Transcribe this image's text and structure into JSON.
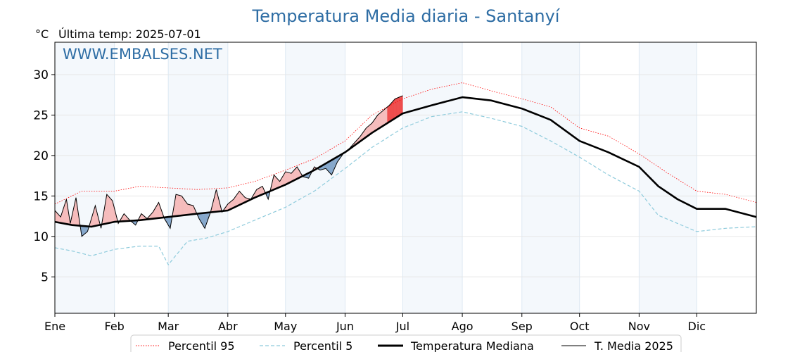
{
  "chart_data": {
    "type": "line",
    "title": "Temperatura Media diaria - Santanyí",
    "unit_label": "°C",
    "last_update_label": "Última temp: 2025-07-01",
    "watermark": "WWW.EMBALSES.NET",
    "ylim": [
      0.5,
      34
    ],
    "yticks": [
      5,
      10,
      15,
      20,
      25,
      30
    ],
    "xlim_days": [
      1,
      366
    ],
    "months": [
      {
        "label": "Ene",
        "start_day": 1
      },
      {
        "label": "Feb",
        "start_day": 32
      },
      {
        "label": "Mar",
        "start_day": 60
      },
      {
        "label": "Abr",
        "start_day": 91
      },
      {
        "label": "May",
        "start_day": 121
      },
      {
        "label": "Jun",
        "start_day": 152
      },
      {
        "label": "Jul",
        "start_day": 182
      },
      {
        "label": "Ago",
        "start_day": 213
      },
      {
        "label": "Sep",
        "start_day": 244
      },
      {
        "label": "Oct",
        "start_day": 274
      },
      {
        "label": "Nov",
        "start_day": 305
      },
      {
        "label": "Dic",
        "start_day": 335
      }
    ],
    "grid": true,
    "legend_position": "bottom-center",
    "series": [
      {
        "name": "Percentil 95",
        "color": "#ff0000",
        "style": "dotted",
        "points": [
          [
            1,
            14.0
          ],
          [
            15,
            15.6
          ],
          [
            32,
            15.6
          ],
          [
            45,
            16.2
          ],
          [
            60,
            16.0
          ],
          [
            75,
            15.8
          ],
          [
            91,
            16.0
          ],
          [
            105,
            16.8
          ],
          [
            121,
            18.2
          ],
          [
            136,
            19.6
          ],
          [
            152,
            21.8
          ],
          [
            166,
            25.0
          ],
          [
            182,
            27.0
          ],
          [
            197,
            28.2
          ],
          [
            213,
            29.0
          ],
          [
            228,
            28.0
          ],
          [
            244,
            27.0
          ],
          [
            259,
            26.0
          ],
          [
            274,
            23.4
          ],
          [
            289,
            22.4
          ],
          [
            305,
            20.2
          ],
          [
            320,
            17.8
          ],
          [
            335,
            15.6
          ],
          [
            350,
            15.2
          ],
          [
            366,
            14.2
          ]
        ]
      },
      {
        "name": "Percentil 5",
        "color": "#8ecbdc",
        "style": "dashed",
        "points": [
          [
            1,
            8.6
          ],
          [
            10,
            8.2
          ],
          [
            20,
            7.6
          ],
          [
            32,
            8.4
          ],
          [
            45,
            8.8
          ],
          [
            55,
            8.8
          ],
          [
            60,
            6.5
          ],
          [
            70,
            9.4
          ],
          [
            80,
            9.8
          ],
          [
            91,
            10.6
          ],
          [
            105,
            12.0
          ],
          [
            121,
            13.6
          ],
          [
            136,
            15.6
          ],
          [
            152,
            18.4
          ],
          [
            166,
            21.0
          ],
          [
            182,
            23.4
          ],
          [
            197,
            24.8
          ],
          [
            213,
            25.4
          ],
          [
            228,
            24.6
          ],
          [
            244,
            23.6
          ],
          [
            259,
            21.8
          ],
          [
            274,
            19.8
          ],
          [
            289,
            17.6
          ],
          [
            305,
            15.6
          ],
          [
            315,
            12.6
          ],
          [
            325,
            11.6
          ],
          [
            335,
            10.6
          ],
          [
            350,
            11.0
          ],
          [
            366,
            11.2
          ]
        ]
      },
      {
        "name": "Temperatura Mediana",
        "color": "#000000",
        "style": "solid-thick",
        "points": [
          [
            1,
            11.8
          ],
          [
            10,
            11.4
          ],
          [
            20,
            11.2
          ],
          [
            32,
            11.8
          ],
          [
            45,
            12.0
          ],
          [
            60,
            12.4
          ],
          [
            75,
            12.8
          ],
          [
            91,
            13.2
          ],
          [
            105,
            14.8
          ],
          [
            121,
            16.4
          ],
          [
            136,
            18.2
          ],
          [
            152,
            20.4
          ],
          [
            166,
            22.8
          ],
          [
            182,
            25.2
          ],
          [
            197,
            26.2
          ],
          [
            213,
            27.2
          ],
          [
            228,
            26.8
          ],
          [
            244,
            25.8
          ],
          [
            259,
            24.4
          ],
          [
            274,
            21.8
          ],
          [
            289,
            20.4
          ],
          [
            305,
            18.6
          ],
          [
            315,
            16.2
          ],
          [
            325,
            14.6
          ],
          [
            335,
            13.4
          ],
          [
            350,
            13.4
          ],
          [
            366,
            12.4
          ]
        ]
      },
      {
        "name": "T. Media 2025",
        "color": "#000000",
        "style": "solid-thin",
        "points": [
          [
            1,
            13.2
          ],
          [
            4,
            12.4
          ],
          [
            7,
            14.6
          ],
          [
            9,
            11.6
          ],
          [
            12,
            14.8
          ],
          [
            15,
            10.0
          ],
          [
            18,
            10.6
          ],
          [
            22,
            13.8
          ],
          [
            25,
            11.0
          ],
          [
            28,
            15.2
          ],
          [
            31,
            14.4
          ],
          [
            34,
            11.6
          ],
          [
            37,
            12.8
          ],
          [
            40,
            12.0
          ],
          [
            43,
            11.4
          ],
          [
            46,
            12.8
          ],
          [
            49,
            12.2
          ],
          [
            52,
            13.0
          ],
          [
            55,
            14.2
          ],
          [
            58,
            12.2
          ],
          [
            61,
            11.0
          ],
          [
            64,
            15.2
          ],
          [
            67,
            15.0
          ],
          [
            70,
            14.0
          ],
          [
            73,
            13.8
          ],
          [
            76,
            12.2
          ],
          [
            79,
            11.0
          ],
          [
            82,
            13.0
          ],
          [
            85,
            15.8
          ],
          [
            88,
            13.0
          ],
          [
            91,
            14.0
          ],
          [
            94,
            14.6
          ],
          [
            97,
            15.6
          ],
          [
            100,
            14.8
          ],
          [
            103,
            14.6
          ],
          [
            106,
            15.8
          ],
          [
            109,
            16.2
          ],
          [
            112,
            14.6
          ],
          [
            115,
            17.6
          ],
          [
            118,
            16.8
          ],
          [
            121,
            18.0
          ],
          [
            124,
            17.8
          ],
          [
            127,
            18.6
          ],
          [
            130,
            17.4
          ],
          [
            133,
            17.2
          ],
          [
            136,
            18.6
          ],
          [
            139,
            18.2
          ],
          [
            142,
            18.4
          ],
          [
            145,
            17.6
          ],
          [
            148,
            19.2
          ],
          [
            151,
            20.2
          ],
          [
            154,
            20.8
          ],
          [
            157,
            21.6
          ],
          [
            160,
            22.4
          ],
          [
            163,
            23.4
          ],
          [
            166,
            24.0
          ],
          [
            169,
            25.0
          ],
          [
            172,
            25.6
          ],
          [
            175,
            26.2
          ],
          [
            178,
            27.0
          ],
          [
            182,
            27.4
          ]
        ]
      }
    ]
  },
  "legend": {
    "items": [
      {
        "label": "Percentil 95"
      },
      {
        "label": "Percentil 5"
      },
      {
        "label": "Temperatura Mediana"
      },
      {
        "label": "T. Media 2025"
      }
    ]
  }
}
